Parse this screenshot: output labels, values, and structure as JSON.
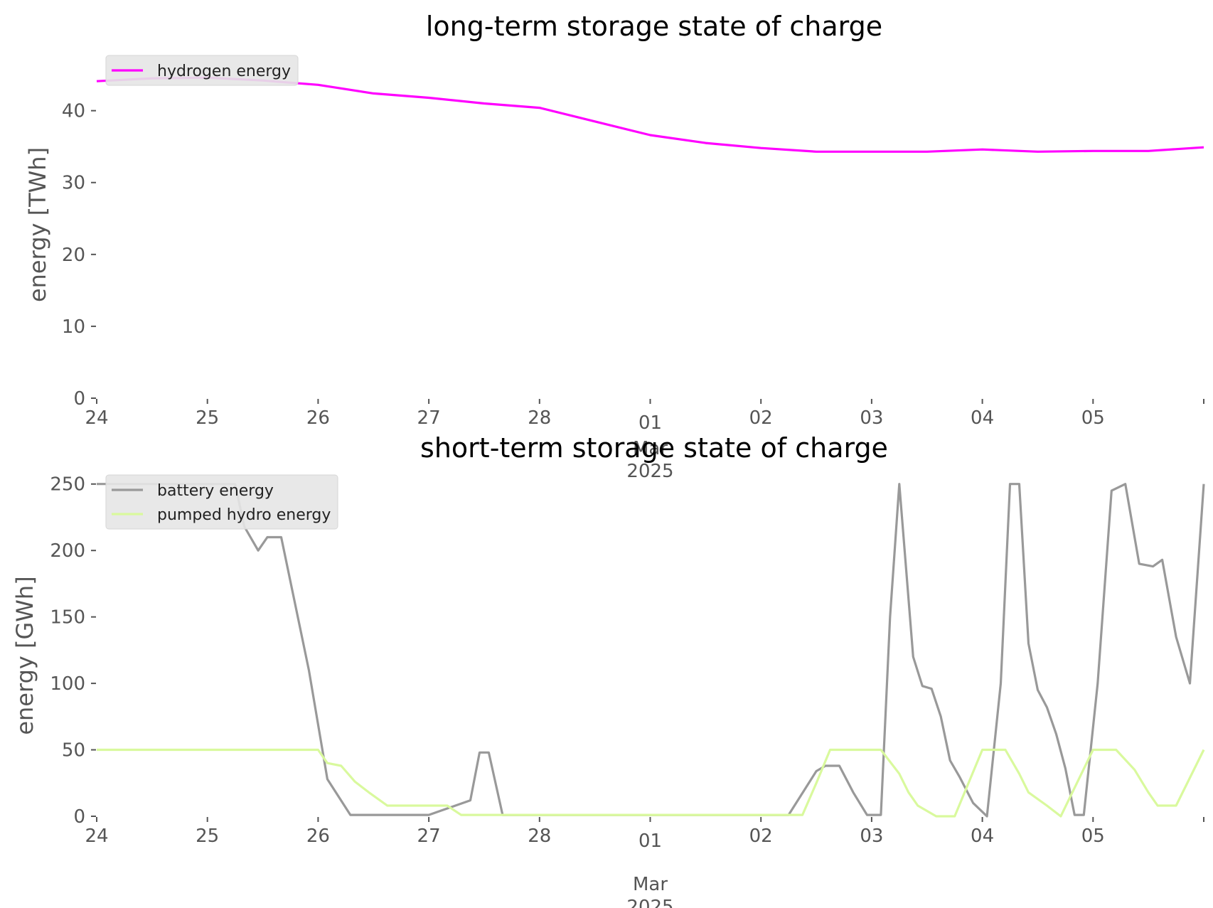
{
  "chart_data": [
    {
      "type": "line",
      "title": "long-term storage state of charge",
      "ylabel": "energy [TWh]",
      "xlabel": "",
      "x_unit": "day",
      "xlim": [
        "2025-02-24",
        "2025-03-06"
      ],
      "ylim": [
        0,
        46
      ],
      "yticks": [
        0,
        10,
        20,
        30,
        40
      ],
      "xtick_labels": [
        "24",
        "25",
        "26",
        "27",
        "28",
        "01",
        "02",
        "03",
        "04",
        "05"
      ],
      "x_sublabel": [
        "Mar",
        "2025"
      ],
      "grid": false,
      "legend": "top-left",
      "series": [
        {
          "name": "hydrogen energy",
          "color": "#ff00ff",
          "x": [
            "2025-02-24",
            "2025-02-24 12:00",
            "2025-02-25",
            "2025-02-25 12:00",
            "2025-02-26",
            "2025-02-26 12:00",
            "2025-02-27",
            "2025-02-27 12:00",
            "2025-02-28",
            "2025-02-28 12:00",
            "2025-03-01",
            "2025-03-01 12:00",
            "2025-03-02",
            "2025-03-02 12:00",
            "2025-03-03",
            "2025-03-03 12:00",
            "2025-03-04",
            "2025-03-04 12:00",
            "2025-03-05",
            "2025-03-05 12:00",
            "2025-03-06"
          ],
          "values": [
            44.1,
            44.5,
            44.6,
            44.2,
            43.6,
            42.4,
            41.8,
            41.0,
            40.4,
            38.5,
            36.6,
            35.5,
            34.8,
            34.3,
            34.3,
            34.3,
            34.6,
            34.3,
            34.4,
            34.4,
            34.9
          ]
        }
      ]
    },
    {
      "type": "line",
      "title": "short-term storage state of charge",
      "ylabel": "energy [GWh]",
      "xlabel": "",
      "x_unit": "day",
      "xlim": [
        "2025-02-24",
        "2025-03-06"
      ],
      "ylim": [
        0,
        252
      ],
      "yticks": [
        0,
        50,
        100,
        150,
        200,
        250
      ],
      "xtick_labels": [
        "24",
        "25",
        "26",
        "27",
        "28",
        "01",
        "02",
        "03",
        "04",
        "05"
      ],
      "x_sublabel": [
        "Mar",
        "2025"
      ],
      "grid": false,
      "legend": "top-left",
      "series": [
        {
          "name": "battery energy",
          "color": "#999999",
          "x": [
            "2025-02-24",
            "2025-02-25 06:00",
            "2025-02-25 08:00",
            "2025-02-25 11:00",
            "2025-02-25 13:00",
            "2025-02-25 16:00",
            "2025-02-25 22:00",
            "2025-02-26 02:00",
            "2025-02-26 07:00",
            "2025-02-26 11:00",
            "2025-02-26 14:00",
            "2025-02-26 17:00",
            "2025-02-26 22:00",
            "2025-02-27",
            "2025-02-27 09:00",
            "2025-02-27 11:00",
            "2025-02-27 13:00",
            "2025-02-27 16:00",
            "2025-02-28 07:00",
            "2025-02-28 09:00",
            "2025-02-28 14:00",
            "2025-02-28 16:00",
            "2025-03-01 10:00",
            "2025-03-01 12:00",
            "2025-03-01 14:00",
            "2025-03-01 18:00",
            "2025-03-01 20:00",
            "2025-03-02 06:00",
            "2025-03-02 12:00",
            "2025-03-02 14:00",
            "2025-03-02 17:00",
            "2025-03-02 20:00",
            "2025-03-02 23:00",
            "2025-03-03 02:00",
            "2025-03-03 04:00",
            "2025-03-03 06:00",
            "2025-03-03 09:00",
            "2025-03-03 11:00",
            "2025-03-03 13:00",
            "2025-03-03 15:00",
            "2025-03-03 17:00",
            "2025-03-03 19:00",
            "2025-03-03 22:00",
            "2025-03-04 01:00",
            "2025-03-04 04:00",
            "2025-03-04 06:00",
            "2025-03-04 08:00",
            "2025-03-04 10:00",
            "2025-03-04 12:00",
            "2025-03-04 14:00",
            "2025-03-04 16:00",
            "2025-03-04 18:00",
            "2025-03-04 20:00",
            "2025-03-04 22:00",
            "2025-03-05 01:00",
            "2025-03-05 04:00",
            "2025-03-05 07:00",
            "2025-03-05 10:00",
            "2025-03-05 13:00",
            "2025-03-05 15:00",
            "2025-03-05 18:00",
            "2025-03-05 21:00",
            "2025-03-06"
          ],
          "values": [
            250,
            250,
            218,
            200,
            210,
            210,
            110,
            28,
            1,
            1,
            1,
            1,
            1,
            1,
            12,
            48,
            48,
            1,
            1,
            1,
            1,
            1,
            1,
            1,
            1,
            1,
            1,
            1,
            34,
            38,
            38,
            18,
            1,
            1,
            150,
            250,
            120,
            98,
            96,
            75,
            42,
            30,
            10,
            0,
            100,
            250,
            250,
            130,
            95,
            82,
            62,
            36,
            1,
            1,
            100,
            245,
            250,
            190,
            188,
            193,
            135,
            100,
            250
          ]
        },
        {
          "name": "pumped hydro energy",
          "color": "#d9f99d",
          "x": [
            "2025-02-24",
            "2025-02-25 23:00",
            "2025-02-26",
            "2025-02-26 02:00",
            "2025-02-26 05:00",
            "2025-02-26 08:00",
            "2025-02-26 11:00",
            "2025-02-26 15:00",
            "2025-02-27 04:00",
            "2025-02-27 07:00",
            "2025-03-02 09:00",
            "2025-03-02 12:00",
            "2025-03-02 15:00",
            "2025-03-02 21:00",
            "2025-03-03 02:00",
            "2025-03-03 06:00",
            "2025-03-03 08:00",
            "2025-03-03 10:00",
            "2025-03-03 14:00",
            "2025-03-03 18:00",
            "2025-03-04",
            "2025-03-04 05:00",
            "2025-03-04 08:00",
            "2025-03-04 10:00",
            "2025-03-04 14:00",
            "2025-03-04 17:00",
            "2025-03-05",
            "2025-03-05 05:00",
            "2025-03-05 09:00",
            "2025-03-05 12:00",
            "2025-03-05 14:00",
            "2025-03-05 18:00",
            "2025-03-06"
          ],
          "values": [
            50,
            50,
            50,
            40,
            38,
            26,
            18,
            8,
            8,
            1,
            1,
            25,
            50,
            50,
            50,
            32,
            18,
            8,
            0,
            0,
            50,
            50,
            32,
            18,
            8,
            0,
            50,
            50,
            35,
            18,
            8,
            8,
            50
          ]
        }
      ]
    }
  ]
}
